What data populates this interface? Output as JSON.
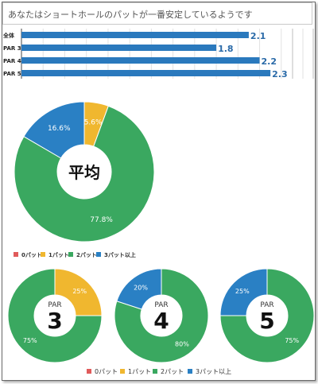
{
  "header": {
    "message": "あなたはショートホールのパットが一番安定しているようです"
  },
  "colors": {
    "putt0": "#e05b5b",
    "putt1": "#f0b72f",
    "putt2": "#3aa860",
    "putt3plus": "#2a80c4",
    "bar": "#2a79bd",
    "value_text": "#2a6aa8"
  },
  "chart_data": [
    {
      "type": "bar",
      "orientation": "horizontal",
      "categories": [
        "全体",
        "PAR 3",
        "PAR 4",
        "PAR 5"
      ],
      "values": [
        2.1,
        1.8,
        2.2,
        2.3
      ],
      "data_labels": [
        "2.1",
        "1.8",
        "2.2",
        "2.3"
      ],
      "xlim": [
        0,
        2.6
      ],
      "grid": true
    },
    {
      "type": "pie",
      "style": "donut",
      "center_label": "平均",
      "slices": [
        {
          "name": "0パット",
          "value": 0
        },
        {
          "name": "1パット",
          "value": 5.6,
          "label": "5.6%"
        },
        {
          "name": "2パット",
          "value": 77.8,
          "label": "77.8%"
        },
        {
          "name": "3パット以上",
          "value": 16.6,
          "label": "16.6%"
        }
      ],
      "legend": [
        "0パット",
        "1パット",
        "2パット",
        "3パット以上"
      ],
      "legend_position": "bottom"
    },
    {
      "type": "pie",
      "style": "donut",
      "center_label": {
        "top": "PAR",
        "big": "3"
      },
      "slices": [
        {
          "name": "0パット",
          "value": 0
        },
        {
          "name": "1パット",
          "value": 25,
          "label": "25%"
        },
        {
          "name": "2パット",
          "value": 75,
          "label": "75%"
        },
        {
          "name": "3パット以上",
          "value": 0
        }
      ]
    },
    {
      "type": "pie",
      "style": "donut",
      "center_label": {
        "top": "PAR",
        "big": "4"
      },
      "slices": [
        {
          "name": "0パット",
          "value": 0
        },
        {
          "name": "1パット",
          "value": 0
        },
        {
          "name": "2パット",
          "value": 80,
          "label": "80%"
        },
        {
          "name": "3パット以上",
          "value": 20,
          "label": "20%"
        }
      ]
    },
    {
      "type": "pie",
      "style": "donut",
      "center_label": {
        "top": "PAR",
        "big": "5"
      },
      "slices": [
        {
          "name": "0パット",
          "value": 0
        },
        {
          "name": "1パット",
          "value": 0
        },
        {
          "name": "2パット",
          "value": 75,
          "label": "75%"
        },
        {
          "name": "3パット以上",
          "value": 25,
          "label": "25%"
        }
      ],
      "legend": [
        "0パット",
        "1パット",
        "2パット",
        "3パット以上"
      ],
      "legend_position": "bottom"
    }
  ]
}
